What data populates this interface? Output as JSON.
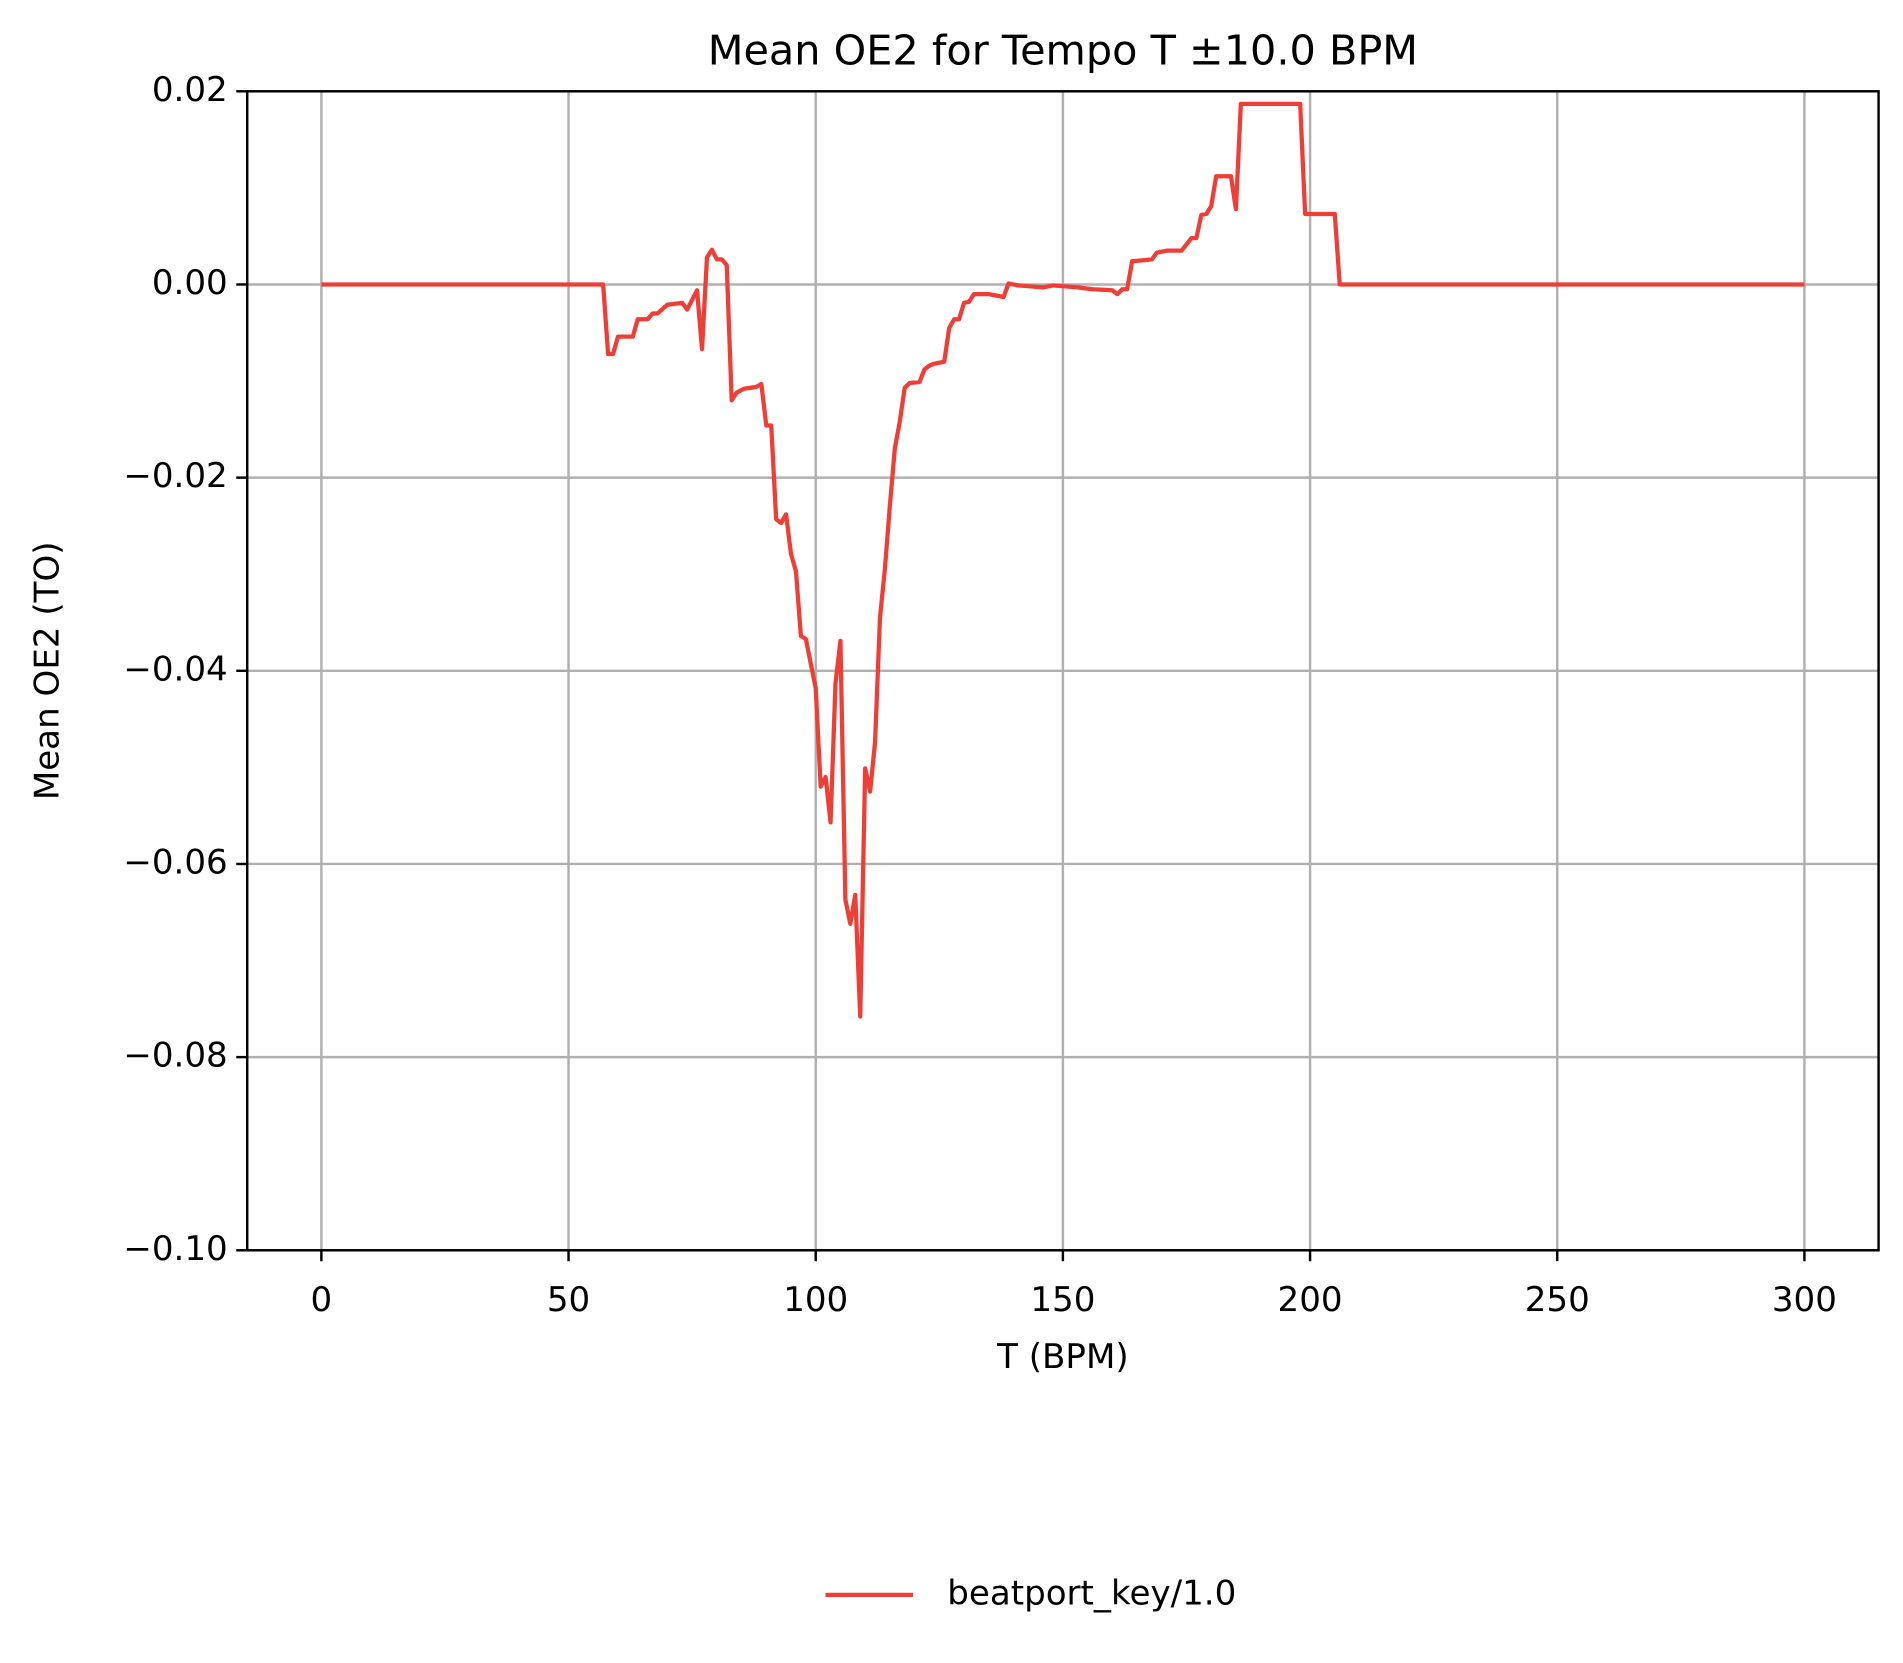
{
  "chart_data": {
    "type": "line",
    "title": "Mean OE2 for Tempo T ±10.0 BPM",
    "x_label": "T (BPM)",
    "y_label": "Mean OE2 (TO)",
    "xlim": [
      -15,
      315
    ],
    "ylim": [
      -0.1,
      0.02
    ],
    "xticks": [
      0,
      50,
      100,
      150,
      200,
      250,
      300
    ],
    "yticks": [
      {
        "value": 0.02,
        "label": "0.02"
      },
      {
        "value": 0,
        "label": "0.00"
      },
      {
        "value": -0.02,
        "label": "−0.02"
      },
      {
        "value": -0.04,
        "label": "−0.04"
      },
      {
        "value": -0.06,
        "label": "−0.06"
      },
      {
        "value": -0.08,
        "label": "−0.08"
      },
      {
        "value": -0.1,
        "label": "−0.10"
      }
    ],
    "grid": true,
    "legend": "lower center",
    "x": [
      0,
      57,
      58,
      59,
      60,
      63,
      64,
      66,
      67,
      68,
      70,
      73,
      74,
      76,
      77,
      78,
      79,
      80,
      81,
      82,
      83,
      84,
      85.5,
      88,
      89,
      90,
      91,
      92,
      93,
      94,
      95,
      96,
      97,
      98,
      100,
      101,
      102,
      103,
      104,
      105,
      106,
      107,
      108,
      109,
      110,
      111,
      112,
      113,
      114,
      115,
      116,
      117,
      118,
      119,
      121,
      122,
      123,
      124,
      126,
      127,
      128,
      129,
      130,
      131,
      132,
      135,
      138,
      139,
      141,
      146,
      148,
      153,
      156,
      160,
      161,
      162,
      163,
      164,
      166,
      168,
      169,
      171,
      174,
      176,
      177,
      178,
      179,
      180,
      181,
      184,
      185,
      186,
      198,
      199,
      205,
      206,
      300
    ],
    "series": [
      {
        "name": "beatport_key/1.0",
        "color": "#ef3e36",
        "values": [
          0,
          0,
          -0.0072,
          -0.0072,
          -0.0054,
          -0.0054,
          -0.0036,
          -0.0036,
          -0.003,
          -0.003,
          -0.0021,
          -0.0019,
          -0.0026,
          -0.0006,
          -0.0067,
          0.0028,
          0.0036,
          0.0026,
          0.0026,
          0.002,
          -0.012,
          -0.0112,
          -0.0108,
          -0.0106,
          -0.0103,
          -0.0146,
          -0.0146,
          -0.0243,
          -0.0247,
          -0.0238,
          -0.0279,
          -0.0297,
          -0.0364,
          -0.0367,
          -0.0418,
          -0.052,
          -0.051,
          -0.0557,
          -0.0413,
          -0.0369,
          -0.0637,
          -0.0662,
          -0.0632,
          -0.0758,
          -0.0501,
          -0.0525,
          -0.0474,
          -0.0345,
          -0.0294,
          -0.0229,
          -0.017,
          -0.0142,
          -0.0107,
          -0.0102,
          -0.0101,
          -0.0088,
          -0.0084,
          -0.0082,
          -0.008,
          -0.0045,
          -0.0036,
          -0.0036,
          -0.0019,
          -0.0018,
          -0.001,
          -0.001,
          -0.0013,
          0.0001,
          -0.0001,
          -0.0003,
          -0.0001,
          -0.0003,
          -0.0005,
          -0.0006,
          -0.001,
          -0.0005,
          -0.0005,
          0.0024,
          0.0025,
          0.0026,
          0.0033,
          0.0035,
          0.0035,
          0.0048,
          0.0048,
          0.0072,
          0.0073,
          0.0081,
          0.0112,
          0.0112,
          0.0078,
          0.0187,
          0.0187,
          0.0073,
          0.0073,
          0,
          0
        ]
      }
    ]
  }
}
